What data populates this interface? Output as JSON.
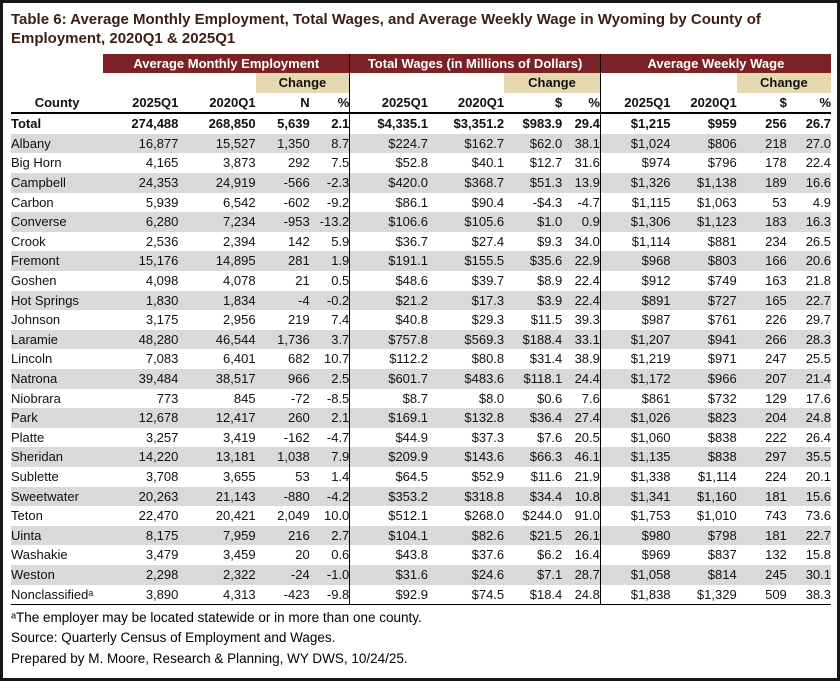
{
  "title": "Table 6: Average Monthly Employment, Total Wages, and Average Weekly Wage in Wyoming by County of Employment, 2020Q1 & 2025Q1",
  "colors": {
    "section_header_bg": "#7b2226",
    "section_header_text": "#ffffff",
    "change_bg": "#e6d9b0",
    "stripe_bg": "#d9d9d9",
    "title_text": "#3f1d12",
    "frame": "#161616"
  },
  "table": {
    "county_header": "County",
    "sections": [
      {
        "label": "Average Monthly Employment",
        "change_label": "Change",
        "columns": [
          "2025Q1",
          "2020Q1",
          "N",
          "%"
        ]
      },
      {
        "label": "Total Wages (in Millions of Dollars)",
        "change_label": "Change",
        "columns": [
          "2025Q1",
          "2020Q1",
          "$",
          "%"
        ]
      },
      {
        "label": "Average Weekly Wage",
        "change_label": "Change",
        "columns": [
          "2025Q1",
          "2020Q1",
          "$",
          "%"
        ]
      }
    ],
    "total_row": {
      "county": "Total",
      "values": [
        "274,488",
        "268,850",
        "5,639",
        "2.1",
        "$4,335.1",
        "$3,351.2",
        "$983.9",
        "29.4",
        "$1,215",
        "$959",
        "256",
        "26.7"
      ]
    },
    "rows": [
      {
        "county": "Albany",
        "values": [
          "16,877",
          "15,527",
          "1,350",
          "8.7",
          "$224.7",
          "$162.7",
          "$62.0",
          "38.1",
          "$1,024",
          "$806",
          "218",
          "27.0"
        ]
      },
      {
        "county": "Big Horn",
        "values": [
          "4,165",
          "3,873",
          "292",
          "7.5",
          "$52.8",
          "$40.1",
          "$12.7",
          "31.6",
          "$974",
          "$796",
          "178",
          "22.4"
        ]
      },
      {
        "county": "Campbell",
        "values": [
          "24,353",
          "24,919",
          "-566",
          "-2.3",
          "$420.0",
          "$368.7",
          "$51.3",
          "13.9",
          "$1,326",
          "$1,138",
          "189",
          "16.6"
        ]
      },
      {
        "county": "Carbon",
        "values": [
          "5,939",
          "6,542",
          "-602",
          "-9.2",
          "$86.1",
          "$90.4",
          "-$4.3",
          "-4.7",
          "$1,115",
          "$1,063",
          "53",
          "4.9"
        ]
      },
      {
        "county": "Converse",
        "values": [
          "6,280",
          "7,234",
          "-953",
          "-13.2",
          "$106.6",
          "$105.6",
          "$1.0",
          "0.9",
          "$1,306",
          "$1,123",
          "183",
          "16.3"
        ]
      },
      {
        "county": "Crook",
        "values": [
          "2,536",
          "2,394",
          "142",
          "5.9",
          "$36.7",
          "$27.4",
          "$9.3",
          "34.0",
          "$1,114",
          "$881",
          "234",
          "26.5"
        ]
      },
      {
        "county": "Fremont",
        "values": [
          "15,176",
          "14,895",
          "281",
          "1.9",
          "$191.1",
          "$155.5",
          "$35.6",
          "22.9",
          "$968",
          "$803",
          "166",
          "20.6"
        ]
      },
      {
        "county": "Goshen",
        "values": [
          "4,098",
          "4,078",
          "21",
          "0.5",
          "$48.6",
          "$39.7",
          "$8.9",
          "22.4",
          "$912",
          "$749",
          "163",
          "21.8"
        ]
      },
      {
        "county": "Hot Springs",
        "values": [
          "1,830",
          "1,834",
          "-4",
          "-0.2",
          "$21.2",
          "$17.3",
          "$3.9",
          "22.4",
          "$891",
          "$727",
          "165",
          "22.7"
        ]
      },
      {
        "county": "Johnson",
        "values": [
          "3,175",
          "2,956",
          "219",
          "7.4",
          "$40.8",
          "$29.3",
          "$11.5",
          "39.3",
          "$987",
          "$761",
          "226",
          "29.7"
        ]
      },
      {
        "county": "Laramie",
        "values": [
          "48,280",
          "46,544",
          "1,736",
          "3.7",
          "$757.8",
          "$569.3",
          "$188.4",
          "33.1",
          "$1,207",
          "$941",
          "266",
          "28.3"
        ]
      },
      {
        "county": "Lincoln",
        "values": [
          "7,083",
          "6,401",
          "682",
          "10.7",
          "$112.2",
          "$80.8",
          "$31.4",
          "38.9",
          "$1,219",
          "$971",
          "247",
          "25.5"
        ]
      },
      {
        "county": "Natrona",
        "values": [
          "39,484",
          "38,517",
          "966",
          "2.5",
          "$601.7",
          "$483.6",
          "$118.1",
          "24.4",
          "$1,172",
          "$966",
          "207",
          "21.4"
        ]
      },
      {
        "county": "Niobrara",
        "values": [
          "773",
          "845",
          "-72",
          "-8.5",
          "$8.7",
          "$8.0",
          "$0.6",
          "7.6",
          "$861",
          "$732",
          "129",
          "17.6"
        ]
      },
      {
        "county": "Park",
        "values": [
          "12,678",
          "12,417",
          "260",
          "2.1",
          "$169.1",
          "$132.8",
          "$36.4",
          "27.4",
          "$1,026",
          "$823",
          "204",
          "24.8"
        ]
      },
      {
        "county": "Platte",
        "values": [
          "3,257",
          "3,419",
          "-162",
          "-4.7",
          "$44.9",
          "$37.3",
          "$7.6",
          "20.5",
          "$1,060",
          "$838",
          "222",
          "26.4"
        ]
      },
      {
        "county": "Sheridan",
        "values": [
          "14,220",
          "13,181",
          "1,038",
          "7.9",
          "$209.9",
          "$143.6",
          "$66.3",
          "46.1",
          "$1,135",
          "$838",
          "297",
          "35.5"
        ]
      },
      {
        "county": "Sublette",
        "values": [
          "3,708",
          "3,655",
          "53",
          "1.4",
          "$64.5",
          "$52.9",
          "$11.6",
          "21.9",
          "$1,338",
          "$1,114",
          "224",
          "20.1"
        ]
      },
      {
        "county": "Sweetwater",
        "values": [
          "20,263",
          "21,143",
          "-880",
          "-4.2",
          "$353.2",
          "$318.8",
          "$34.4",
          "10.8",
          "$1,341",
          "$1,160",
          "181",
          "15.6"
        ]
      },
      {
        "county": "Teton",
        "values": [
          "22,470",
          "20,421",
          "2,049",
          "10.0",
          "$512.1",
          "$268.0",
          "$244.0",
          "91.0",
          "$1,753",
          "$1,010",
          "743",
          "73.6"
        ]
      },
      {
        "county": "Uinta",
        "values": [
          "8,175",
          "7,959",
          "216",
          "2.7",
          "$104.1",
          "$82.6",
          "$21.5",
          "26.1",
          "$980",
          "$798",
          "181",
          "22.7"
        ]
      },
      {
        "county": "Washakie",
        "values": [
          "3,479",
          "3,459",
          "20",
          "0.6",
          "$43.8",
          "$37.6",
          "$6.2",
          "16.4",
          "$969",
          "$837",
          "132",
          "15.8"
        ]
      },
      {
        "county": "Weston",
        "values": [
          "2,298",
          "2,322",
          "-24",
          "-1.0",
          "$31.6",
          "$24.6",
          "$7.1",
          "28.7",
          "$1,058",
          "$814",
          "245",
          "30.1"
        ]
      },
      {
        "county": "Nonclassifiedᵃ",
        "values": [
          "3,890",
          "4,313",
          "-423",
          "-9.8",
          "$92.9",
          "$74.5",
          "$18.4",
          "24.8",
          "$1,838",
          "$1,329",
          "509",
          "38.3"
        ]
      }
    ]
  },
  "footnotes": [
    "ᵃThe employer may be located statewide or in more than one county.",
    "Source: Quarterly Census of Employment and Wages.",
    "Prepared by M. Moore, Research & Planning, WY DWS, 10/24/25."
  ]
}
